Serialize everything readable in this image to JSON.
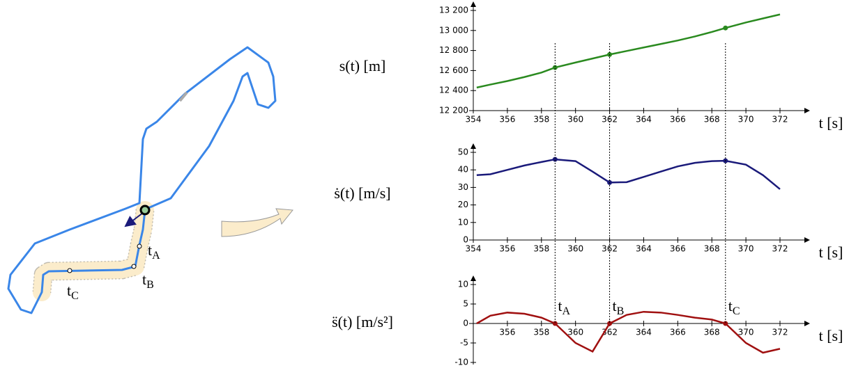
{
  "chart_data": [
    {
      "type": "line",
      "y_label": "s(t) [m]",
      "x_label": "t [s]",
      "x": [
        354.2,
        355,
        356,
        357,
        358,
        358.8,
        360,
        361,
        362,
        363,
        364,
        365,
        366,
        367,
        368,
        368.8,
        370,
        371,
        372
      ],
      "series": [
        {
          "color": "#2a8a1f",
          "values": [
            12430,
            12460,
            12495,
            12535,
            12580,
            12630,
            12680,
            12720,
            12760,
            12795,
            12830,
            12865,
            12900,
            12940,
            12985,
            13025,
            13080,
            13120,
            13160
          ]
        }
      ],
      "xlim": [
        354,
        372
      ],
      "ylim": [
        12200,
        13200
      ],
      "xticks": [
        354,
        356,
        358,
        360,
        362,
        364,
        366,
        368,
        370,
        372
      ],
      "yticks": [
        {
          "value": 12200,
          "label": "12 200"
        },
        {
          "value": 12400,
          "label": "12 400"
        },
        {
          "value": 12600,
          "label": "12 600"
        },
        {
          "value": 12800,
          "label": "12 800"
        },
        {
          "value": 13000,
          "label": "13 000"
        },
        {
          "value": 13200,
          "label": "13 200"
        }
      ]
    },
    {
      "type": "line",
      "y_label": "ṡ(t) [m/s]",
      "x_label": "t [s]",
      "x": [
        354.2,
        355,
        356,
        357,
        358,
        358.8,
        360,
        361,
        362,
        363,
        364,
        365,
        366,
        367,
        368,
        368.8,
        370,
        371,
        372
      ],
      "series": [
        {
          "color": "#1a1a7a",
          "values": [
            37,
            37.5,
            40,
            42.5,
            44.5,
            46,
            45,
            39,
            32.8,
            33,
            36,
            39,
            42,
            44,
            45,
            45.2,
            43,
            37,
            29
          ]
        }
      ],
      "xlim": [
        354,
        372
      ],
      "ylim": [
        0,
        50
      ],
      "xticks": [
        354,
        356,
        358,
        360,
        362,
        364,
        366,
        368,
        370,
        372
      ],
      "yticks": [
        0,
        10,
        20,
        30,
        40,
        50
      ]
    },
    {
      "type": "line",
      "y_label": "s̈(t) [m/s²]",
      "x_label": "t [s]",
      "x": [
        354.2,
        355,
        356,
        357,
        358,
        358.8,
        360,
        361,
        362,
        363,
        364,
        365,
        366,
        367,
        368,
        368.8,
        370,
        371,
        372
      ],
      "series": [
        {
          "color": "#a01010",
          "values": [
            0,
            2,
            2.8,
            2.5,
            1.5,
            0,
            -5,
            -7.2,
            0,
            2.2,
            3,
            2.8,
            2.2,
            1.5,
            1,
            0,
            -5,
            -7.5,
            -6.5
          ]
        }
      ],
      "xlim": [
        354,
        372
      ],
      "ylim": [
        -10,
        10
      ],
      "xticks": [
        356,
        358,
        360,
        362,
        364,
        366,
        368,
        370,
        372
      ],
      "yticks": [
        -10,
        -5,
        0,
        5,
        10
      ],
      "annotations": [
        {
          "base": "t",
          "sub": "A",
          "x": 358.8
        },
        {
          "base": "t",
          "sub": "B",
          "x": 362
        },
        {
          "base": "t",
          "sub": "C",
          "x": 368.8
        }
      ]
    }
  ],
  "track": {
    "labels": [
      {
        "base": "t",
        "sub": "A"
      },
      {
        "base": "t",
        "sub": "B"
      },
      {
        "base": "t",
        "sub": "C"
      }
    ]
  }
}
